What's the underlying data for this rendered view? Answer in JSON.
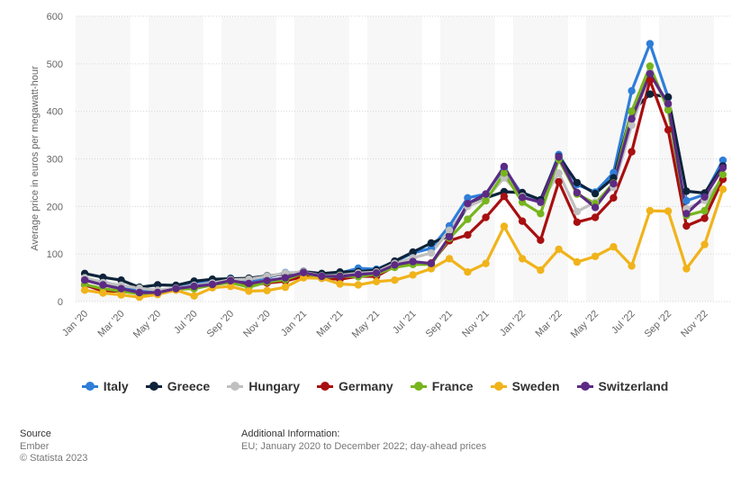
{
  "chart_data": {
    "type": "line",
    "title": "",
    "ylabel": "Average price in euros per megawatt-hour",
    "xlabel": "",
    "ylim": [
      0,
      600
    ],
    "yticks": [
      0,
      100,
      200,
      300,
      400,
      500,
      600
    ],
    "x_tick_labels": [
      "Jan '20",
      "Mar '20",
      "May '20",
      "Jul '20",
      "Sep '20",
      "Nov '20",
      "Jan '21",
      "Mar '21",
      "May '21",
      "Jul '21",
      "Sep '21",
      "Nov '21",
      "Jan '22",
      "Mar '22",
      "May '22",
      "Jul '22",
      "Sep '22",
      "Nov '22"
    ],
    "categories": [
      "Jan '20",
      "Feb '20",
      "Mar '20",
      "Apr '20",
      "May '20",
      "Jun '20",
      "Jul '20",
      "Aug '20",
      "Sep '20",
      "Oct '20",
      "Nov '20",
      "Dec '20",
      "Jan '21",
      "Feb '21",
      "Mar '21",
      "Apr '21",
      "May '21",
      "Jun '21",
      "Jul '21",
      "Aug '21",
      "Sep '21",
      "Oct '21",
      "Nov '21",
      "Dec '21",
      "Jan '22",
      "Feb '22",
      "Mar '22",
      "Apr '22",
      "May '22",
      "Jun '22",
      "Jul '22",
      "Aug '22",
      "Sep '22",
      "Oct '22",
      "Nov '22",
      "Dec '22"
    ],
    "legend_position": "bottom",
    "series": [
      {
        "name": "Italy",
        "color": "#2f7ed8",
        "values": [
          48,
          41,
          32,
          24,
          22,
          28,
          38,
          40,
          49,
          44,
          50,
          61,
          60,
          56,
          60,
          70,
          68,
          84,
          102,
          112,
          159,
          218,
          226,
          281,
          224,
          210,
          309,
          246,
          230,
          271,
          443,
          542,
          429,
          212,
          225,
          297
        ]
      },
      {
        "name": "Greece",
        "color": "#0d233a",
        "values": [
          59,
          51,
          45,
          30,
          35,
          34,
          43,
          47,
          48,
          49,
          54,
          58,
          63,
          59,
          62,
          63,
          66,
          85,
          104,
          123,
          138,
          201,
          218,
          231,
          229,
          214,
          305,
          250,
          227,
          260,
          400,
          436,
          430,
          232,
          228,
          285
        ]
      },
      {
        "name": "Hungary",
        "color": "#c0c0c0",
        "values": [
          50,
          40,
          34,
          28,
          24,
          28,
          34,
          39,
          46,
          47,
          53,
          60,
          62,
          54,
          55,
          60,
          62,
          80,
          92,
          102,
          150,
          200,
          216,
          260,
          221,
          208,
          270,
          189,
          209,
          240,
          371,
          481,
          408,
          195,
          213,
          258
        ]
      },
      {
        "name": "Germany",
        "color": "#a80f10",
        "values": [
          35,
          22,
          22,
          17,
          18,
          26,
          30,
          35,
          44,
          34,
          39,
          43,
          53,
          49,
          47,
          53,
          53,
          74,
          82,
          81,
          128,
          140,
          177,
          221,
          169,
          129,
          252,
          167,
          177,
          218,
          315,
          465,
          361,
          159,
          175,
          257
        ]
      },
      {
        "name": "France",
        "color": "#77b51d",
        "values": [
          36,
          27,
          22,
          16,
          16,
          26,
          27,
          35,
          40,
          30,
          41,
          46,
          60,
          50,
          54,
          52,
          58,
          72,
          78,
          78,
          133,
          173,
          212,
          270,
          209,
          185,
          299,
          226,
          206,
          249,
          400,
          495,
          403,
          181,
          191,
          267
        ]
      },
      {
        "name": "Sweden",
        "color": "#f0b31a",
        "values": [
          24,
          18,
          14,
          9,
          15,
          24,
          12,
          29,
          32,
          22,
          23,
          30,
          50,
          49,
          37,
          35,
          42,
          45,
          56,
          69,
          90,
          62,
          80,
          158,
          90,
          66,
          110,
          83,
          95,
          115,
          75,
          191,
          190,
          69,
          120,
          236
        ]
      },
      {
        "name": "Switzerland",
        "color": "#5c2a84",
        "values": [
          45,
          35,
          27,
          19,
          19,
          27,
          32,
          36,
          44,
          38,
          44,
          50,
          61,
          53,
          53,
          57,
          60,
          77,
          84,
          80,
          136,
          206,
          226,
          284,
          219,
          209,
          304,
          229,
          198,
          248,
          384,
          479,
          416,
          185,
          220,
          281
        ]
      }
    ]
  },
  "footer": {
    "source_heading": "Source",
    "source_name": "Ember",
    "copyright": "© Statista 2023",
    "info_heading": "Additional Information:",
    "info_text": "EU; January 2020 to December 2022; day-ahead prices"
  }
}
